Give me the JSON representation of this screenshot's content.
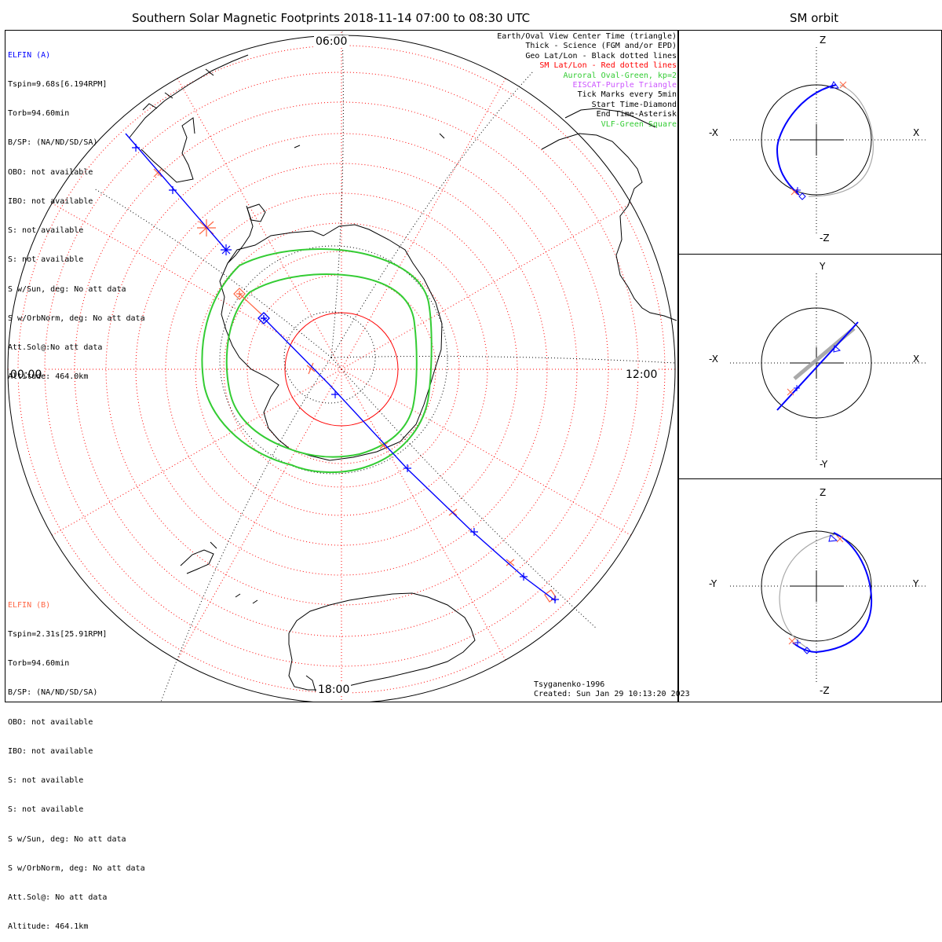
{
  "title": "Southern Solar Magnetic Footprints 2018-11-14 07:00 to 08:30 UTC",
  "orbit_title": "SM orbit",
  "clock_labels": {
    "top": "06:00",
    "left": "00:00",
    "right": "12:00",
    "bottom": "18:00"
  },
  "elfin_a": {
    "name": "ELFIN (A)",
    "lines": [
      "Tspin=9.68s[6.194RPM]",
      "Torb=94.60min",
      "B/SP: (NA/ND/SD/SA)",
      "OBO: not available",
      "IBO: not available",
      "S: not available",
      "S: not available",
      "S w/Sun, deg: No att data",
      "S w/OrbNorm, deg: No att data",
      "Att.Sol@:No att data",
      "Altitude: 464.0km"
    ]
  },
  "elfin_b": {
    "name": "ELFIN (B)",
    "lines": [
      "Tspin=2.31s[25.91RPM]",
      "Torb=94.60min",
      "B/SP: (NA/ND/SD/SA)",
      "OBO: not available",
      "IBO: not available",
      "S: not available",
      "S: not available",
      "S w/Sun, deg: No att data",
      "S w/OrbNorm, deg: No att data",
      "Att.Sol@: No att data",
      "Altitude: 464.1km"
    ]
  },
  "legend": [
    {
      "text": "Earth/Oval View Center Time (triangle)",
      "color": "#000000"
    },
    {
      "text": "Thick - Science (FGM and/or EPD)",
      "color": "#000000"
    },
    {
      "text": "Geo Lat/Lon - Black dotted lines",
      "color": "#000000"
    },
    {
      "text": "SM Lat/Lon - Red dotted lines",
      "color": "#ff0000"
    },
    {
      "text": "Auroral Oval-Green, kp=2",
      "color": "#33cc33"
    },
    {
      "text": "EISCAT-Purple Triangle",
      "color": "#cc55ff"
    },
    {
      "text": "Tick Marks every 5min",
      "color": "#000000"
    },
    {
      "text": "Start Time-Diamond",
      "color": "#000000"
    },
    {
      "text": "End Time-Asterisk",
      "color": "#000000"
    },
    {
      "text": "VLF-Green Square",
      "color": "#33cc33"
    }
  ],
  "credits": {
    "model": "Tsyganenko-1996",
    "created": "Created: Sun Jan 29 10:13:20 2023"
  },
  "orbit_panels": [
    {
      "top": "Z",
      "bottom": "-Z",
      "left": "-X",
      "right": "X"
    },
    {
      "top": "Y",
      "bottom": "-Y",
      "left": "-X",
      "right": "X"
    },
    {
      "top": "Z",
      "bottom": "-Z",
      "left": "-Y",
      "right": "Y"
    }
  ],
  "colors": {
    "elfin_a": "#0000ff",
    "elfin_b": "#ff6644",
    "sm_grid": "#ff0000",
    "auroral_oval": "#33cc33",
    "orbit_shadow": "#aaaaaa"
  }
}
